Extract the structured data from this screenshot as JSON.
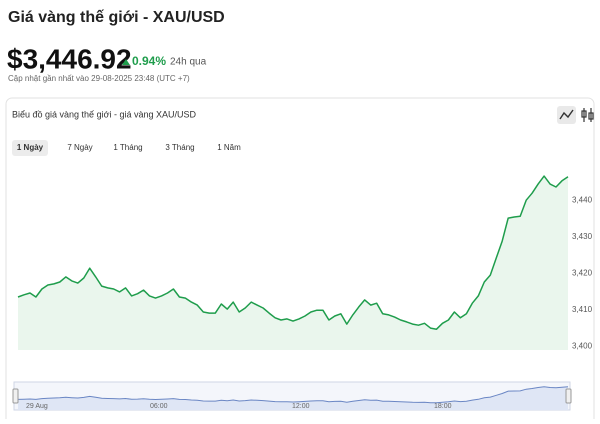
{
  "header": {
    "title": "Giá vàng thế giới - XAU/USD",
    "price": "$3,446.92",
    "change": "0.94%",
    "period": "24h qua",
    "updated": "Cập nhật gần nhất vào 29-08-2025 23:48 (UTC +7)"
  },
  "card": {
    "title": "Biểu đồ giá vàng thế giới - giá vàng XAU/USD",
    "tabs": [
      "1 Ngày",
      "7 Ngày",
      "1 Tháng",
      "3 Tháng",
      "1 Năm"
    ],
    "selected_tab": 0
  },
  "chart_data": {
    "type": "line",
    "color": "#1f9d4c",
    "area_color": "#eaf6ed",
    "values": [
      3413.5,
      3414.1,
      3414.6,
      3413.5,
      3415.7,
      3416.8,
      3417.1,
      3417.6,
      3419.0,
      3417.9,
      3417.3,
      3418.7,
      3421.4,
      3419.0,
      3416.5,
      3416.0,
      3415.7,
      3414.9,
      3416.0,
      3413.8,
      3414.4,
      3415.4,
      3413.8,
      3413.2,
      3413.8,
      3414.6,
      3415.7,
      3413.5,
      3413.2,
      3412.1,
      3411.3,
      3409.4,
      3409.1,
      3409.1,
      3411.6,
      3410.2,
      3412.1,
      3409.4,
      3410.5,
      3412.1,
      3411.3,
      3410.5,
      3409.1,
      3407.8,
      3407.2,
      3407.5,
      3406.9,
      3407.5,
      3408.3,
      3409.4,
      3409.9,
      3409.9,
      3407.2,
      3408.3,
      3408.9,
      3406.1,
      3408.6,
      3410.8,
      3412.7,
      3411.3,
      3411.8,
      3408.9,
      3408.6,
      3408.0,
      3407.2,
      3406.7,
      3406.1,
      3405.8,
      3406.3,
      3405.0,
      3404.7,
      3406.3,
      3407.2,
      3409.4,
      3407.8,
      3408.9,
      3411.8,
      3413.8,
      3417.6,
      3419.5,
      3424.2,
      3428.8,
      3435.1,
      3435.4,
      3435.6,
      3440.0,
      3441.9,
      3444.4,
      3446.6,
      3444.4,
      3443.6,
      3445.3,
      3446.4
    ],
    "ylim": [
      3399,
      3451
    ],
    "yticks": [
      {
        "value": 3400,
        "label": "3,400"
      },
      {
        "value": 3410,
        "label": "3,410"
      },
      {
        "value": 3420,
        "label": "3,420"
      },
      {
        "value": 3430,
        "label": "3,430"
      },
      {
        "value": 3440,
        "label": "3,440"
      }
    ],
    "navigator_labels": [
      "29 Aug",
      "06:00",
      "12:00",
      "18:00"
    ]
  }
}
